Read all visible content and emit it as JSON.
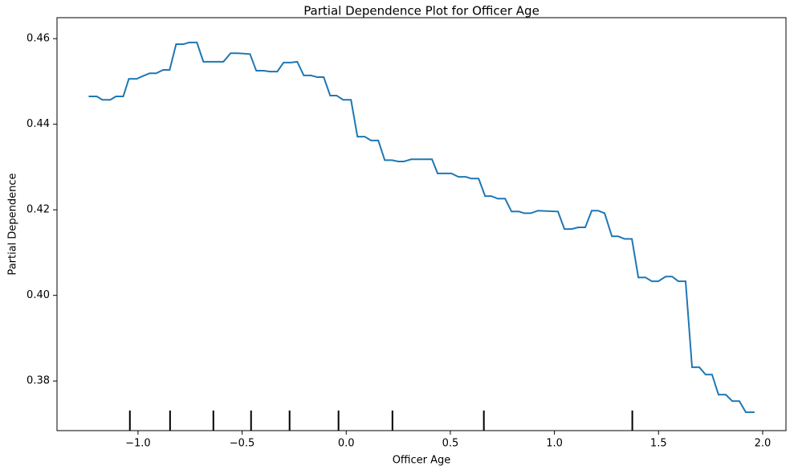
{
  "chart_data": {
    "type": "line",
    "title": "Partial Dependence Plot for Officer Age",
    "xlabel": "Officer Age",
    "ylabel": "Partial Dependence",
    "color": "#1f77b4",
    "grid": false,
    "xlim": [
      -1.389,
      2.112
    ],
    "ylim": [
      0.3684,
      0.4649
    ],
    "xticks": [
      {
        "value": -1.0,
        "label": "−1.0"
      },
      {
        "value": -0.5,
        "label": "−0.5"
      },
      {
        "value": 0.0,
        "label": "0.0"
      },
      0.5,
      {
        "value": 1.0,
        "label": "1.0"
      },
      1.5,
      {
        "value": 2.0,
        "label": "2.0"
      }
    ],
    "yticks": [
      0.38,
      {
        "value": 0.4,
        "label": "0.40"
      },
      0.42,
      0.44,
      0.46
    ],
    "x": [
      -1.237,
      -1.198,
      -1.171,
      -1.133,
      -1.106,
      -1.071,
      -1.044,
      -1.006,
      -0.979,
      -0.944,
      -0.913,
      -0.879,
      -0.848,
      -0.817,
      -0.782,
      -0.755,
      -0.717,
      -0.686,
      -0.651,
      -0.59,
      -0.555,
      -0.52,
      -0.462,
      -0.432,
      -0.397,
      -0.366,
      -0.331,
      -0.301,
      -0.266,
      -0.235,
      -0.204,
      -0.17,
      -0.139,
      -0.108,
      -0.077,
      -0.046,
      -0.015,
      0.023,
      0.054,
      0.089,
      0.119,
      0.154,
      0.185,
      0.22,
      0.25,
      0.277,
      0.312,
      0.382,
      0.412,
      0.439,
      0.505,
      0.539,
      0.574,
      0.601,
      0.636,
      0.667,
      0.697,
      0.728,
      0.763,
      0.794,
      0.829,
      0.855,
      0.886,
      0.921,
      1.017,
      1.048,
      1.083,
      1.114,
      1.148,
      1.179,
      1.21,
      1.241,
      1.276,
      1.306,
      1.337,
      1.372,
      1.403,
      1.437,
      1.468,
      1.499,
      1.534,
      1.565,
      1.595,
      1.63,
      1.661,
      1.696,
      1.726,
      1.757,
      1.788,
      1.823,
      1.854,
      1.888,
      1.919,
      1.961
    ],
    "values": [
      0.4465,
      0.4465,
      0.4457,
      0.4457,
      0.4465,
      0.4465,
      0.4506,
      0.4506,
      0.4512,
      0.4519,
      0.4519,
      0.4527,
      0.4527,
      0.4587,
      0.4587,
      0.4591,
      0.4591,
      0.4546,
      0.4546,
      0.4546,
      0.4566,
      0.4566,
      0.4564,
      0.4525,
      0.4525,
      0.4523,
      0.4523,
      0.4544,
      0.4544,
      0.4546,
      0.4514,
      0.4514,
      0.451,
      0.451,
      0.4467,
      0.4467,
      0.4457,
      0.4457,
      0.4371,
      0.4371,
      0.4362,
      0.4362,
      0.4316,
      0.4316,
      0.4313,
      0.4313,
      0.4318,
      0.4318,
      0.4318,
      0.4285,
      0.4285,
      0.4277,
      0.4277,
      0.4273,
      0.4273,
      0.4232,
      0.4232,
      0.4226,
      0.4226,
      0.4196,
      0.4196,
      0.4192,
      0.4192,
      0.4198,
      0.4196,
      0.4155,
      0.4155,
      0.4159,
      0.4159,
      0.4198,
      0.4198,
      0.4192,
      0.4138,
      0.4138,
      0.4132,
      0.4132,
      0.4042,
      0.4042,
      0.4033,
      0.4033,
      0.4044,
      0.4044,
      0.4033,
      0.4033,
      0.3832,
      0.3832,
      0.3815,
      0.3815,
      0.3768,
      0.3768,
      0.3753,
      0.3753,
      0.3727,
      0.3727
    ],
    "rug_x": [
      -1.039,
      -0.846,
      -0.638,
      -0.457,
      -0.272,
      -0.037,
      0.222,
      0.661,
      1.374
    ]
  }
}
